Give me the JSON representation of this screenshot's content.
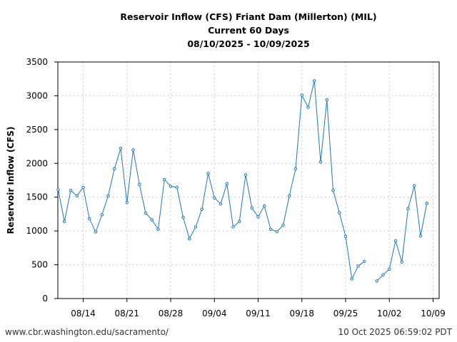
{
  "chart_data": {
    "type": "line",
    "title": [
      "Reservoir Inflow (CFS) Friant Dam (Millerton) (MIL)",
      "Current 60 Days",
      "08/10/2025 - 10/09/2025"
    ],
    "xlabel": "",
    "ylabel": "Reservoir Inflow (CFS)",
    "ylim": [
      0,
      3500
    ],
    "yticks": [
      "0",
      "500",
      "1000",
      "1500",
      "2000",
      "2500",
      "3000",
      "3500"
    ],
    "xticks": [
      {
        "label": "08/14",
        "day": 4
      },
      {
        "label": "08/21",
        "day": 11
      },
      {
        "label": "08/28",
        "day": 18
      },
      {
        "label": "09/04",
        "day": 25
      },
      {
        "label": "09/11",
        "day": 32
      },
      {
        "label": "09/18",
        "day": 39
      },
      {
        "label": "09/25",
        "day": 46
      },
      {
        "label": "10/02",
        "day": 53
      },
      {
        "label": "10/09",
        "day": 60
      }
    ],
    "grid": true,
    "color": "#1f77b4",
    "start_date": "08/10/2025",
    "values": [
      1610,
      1140,
      1600,
      1520,
      1645,
      1180,
      985,
      1240,
      1520,
      1920,
      2220,
      1420,
      2200,
      1690,
      1265,
      1165,
      1025,
      1760,
      1660,
      1645,
      1200,
      885,
      1060,
      1320,
      1850,
      1490,
      1400,
      1700,
      1060,
      1140,
      1830,
      1340,
      1210,
      1370,
      1025,
      990,
      1085,
      1520,
      1920,
      3010,
      2830,
      3220,
      2020,
      2940,
      1600,
      1270,
      920,
      290,
      480,
      550,
      null,
      260,
      350,
      435,
      855,
      540,
      1330,
      1670,
      925,
      1410
    ]
  },
  "footer": {
    "source": "www.cbr.washington.edu/sacramento/",
    "timestamp": "10 Oct 2025 06:59:02 PDT"
  }
}
